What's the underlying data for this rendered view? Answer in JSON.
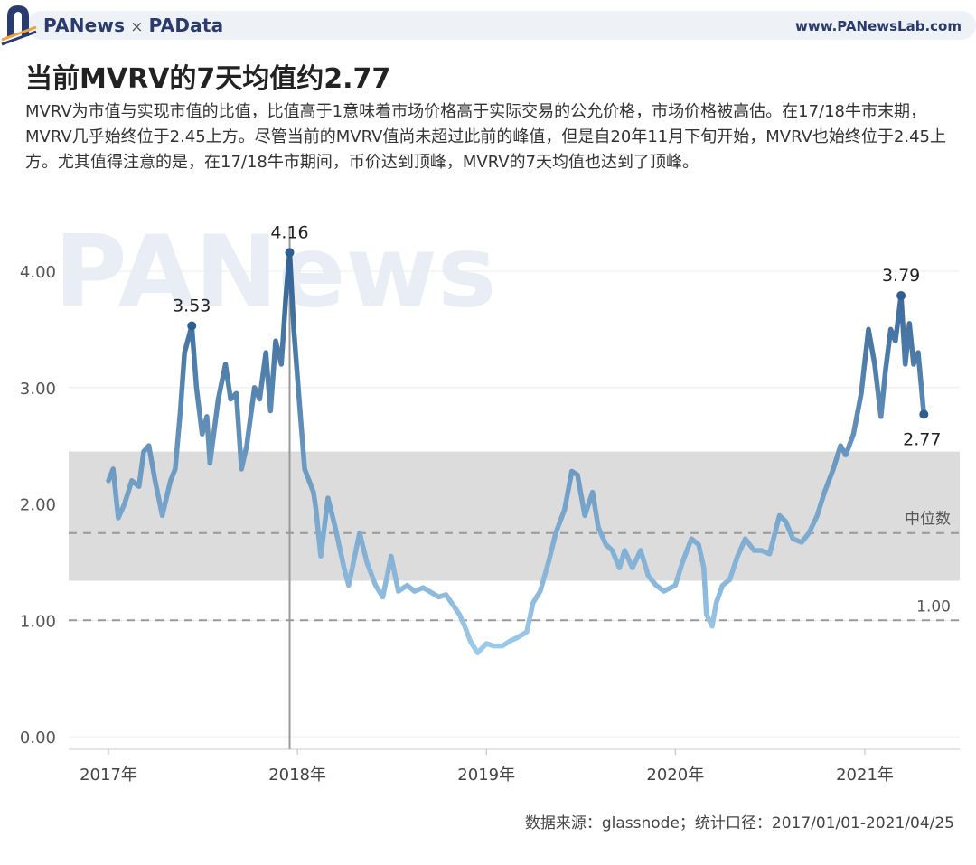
{
  "header": {
    "brand_left": "PANews",
    "brand_sep": "×",
    "brand_right": "PAData",
    "site": "www.PANewsLab.com"
  },
  "title": "当前MVRV的7天均值约2.77",
  "description": "MVRV为市值与实现市值的比值，比值高于1意味着市场价格高于实际交易的公允价格，市场价格被高估。在17/18牛市末期，MVRV几乎始终位于2.45上方。尽管当前的MVRV值尚未超过此前的峰值，但是自20年11月下旬开始，MVRV也始终位于2.45上方。尤其值得注意的是，在17/18牛市期间，币价达到顶峰，MVRV的7天均值也达到了顶峰。",
  "source": "数据来源：glassnode；统计口径：2017/01/01-2021/04/25",
  "watermarks": [
    "PANews",
    "PAData"
  ],
  "colors": {
    "line_low": "#9fcbea",
    "line_high": "#2f5f91",
    "band": "#dcdcdc"
  },
  "chart_data": {
    "type": "line",
    "title": "",
    "xlabel": "",
    "ylabel": "",
    "xlim": [
      "2017-01-01",
      "2021-05-20"
    ],
    "ylim": [
      0,
      4.3
    ],
    "y_ticks": [
      "0.00",
      "1.00",
      "2.00",
      "3.00",
      "4.00"
    ],
    "x_ticks": [
      "2017年",
      "2018年",
      "2019年",
      "2020年",
      "2021年"
    ],
    "grid": true,
    "band": [
      1.34,
      2.45
    ],
    "reference_lines": [
      {
        "label": "中位数",
        "value": 1.75
      },
      {
        "label": "1.00",
        "value": 1.0
      }
    ],
    "vertical_marker": "2017-12-17",
    "annotations": [
      {
        "label": "3.53",
        "x": "2017-06-11",
        "y": 3.53
      },
      {
        "label": "4.16",
        "x": "2017-12-17",
        "y": 4.16
      },
      {
        "label": "3.79",
        "x": "2021-03-12",
        "y": 3.79
      },
      {
        "label": "2.77",
        "x": "2021-04-25",
        "y": 2.77
      }
    ],
    "series": [
      {
        "x": [
          "2017-01-01",
          "2017-01-10",
          "2017-01-20",
          "2017-02-01",
          "2017-02-15",
          "2017-03-01",
          "2017-03-10",
          "2017-03-20",
          "2017-04-01",
          "2017-04-15",
          "2017-05-01",
          "2017-05-10",
          "2017-05-20",
          "2017-05-28",
          "2017-06-11",
          "2017-06-20",
          "2017-07-01",
          "2017-07-10",
          "2017-07-16",
          "2017-08-01",
          "2017-08-15",
          "2017-08-25",
          "2017-09-05",
          "2017-09-15",
          "2017-09-25",
          "2017-10-10",
          "2017-10-20",
          "2017-11-01",
          "2017-11-10",
          "2017-11-20",
          "2017-12-01",
          "2017-12-10",
          "2017-12-17",
          "2017-12-25",
          "2018-01-06",
          "2018-01-15",
          "2018-02-01",
          "2018-02-06",
          "2018-02-15",
          "2018-03-01",
          "2018-03-15",
          "2018-04-01",
          "2018-04-10",
          "2018-05-01",
          "2018-05-15",
          "2018-06-01",
          "2018-06-15",
          "2018-07-01",
          "2018-07-15",
          "2018-08-01",
          "2018-08-15",
          "2018-09-01",
          "2018-10-01",
          "2018-10-15",
          "2018-11-10",
          "2018-11-20",
          "2018-12-01",
          "2018-12-15",
          "2019-01-01",
          "2019-01-15",
          "2019-02-01",
          "2019-02-15",
          "2019-03-01",
          "2019-03-20",
          "2019-04-01",
          "2019-04-15",
          "2019-05-01",
          "2019-05-15",
          "2019-06-01",
          "2019-06-15",
          "2019-06-26",
          "2019-07-10",
          "2019-07-25",
          "2019-08-05",
          "2019-08-20",
          "2019-09-01",
          "2019-09-15",
          "2019-09-25",
          "2019-10-10",
          "2019-10-26",
          "2019-11-10",
          "2019-11-25",
          "2019-12-10",
          "2020-01-01",
          "2020-01-15",
          "2020-02-01",
          "2020-02-15",
          "2020-02-25",
          "2020-03-01",
          "2020-03-12",
          "2020-03-20",
          "2020-04-01",
          "2020-04-15",
          "2020-04-30",
          "2020-05-15",
          "2020-06-01",
          "2020-06-15",
          "2020-07-01",
          "2020-07-20",
          "2020-08-01",
          "2020-08-15",
          "2020-09-01",
          "2020-09-15",
          "2020-10-01",
          "2020-10-15",
          "2020-11-01",
          "2020-11-15",
          "2020-11-25",
          "2020-12-10",
          "2020-12-25",
          "2021-01-08",
          "2021-01-20",
          "2021-02-01",
          "2021-02-10",
          "2021-02-20",
          "2021-03-01",
          "2021-03-12",
          "2021-03-20",
          "2021-03-28",
          "2021-04-05",
          "2021-04-14",
          "2021-04-25"
        ],
        "y": [
          2.2,
          2.3,
          1.88,
          2.0,
          2.2,
          2.15,
          2.45,
          2.5,
          2.2,
          1.9,
          2.2,
          2.3,
          2.8,
          3.3,
          3.53,
          3.0,
          2.6,
          2.75,
          2.35,
          2.9,
          3.2,
          2.9,
          2.95,
          2.3,
          2.5,
          3.0,
          2.9,
          3.3,
          2.8,
          3.4,
          3.2,
          3.8,
          4.16,
          3.5,
          2.8,
          2.3,
          2.1,
          1.95,
          1.55,
          2.05,
          1.8,
          1.45,
          1.3,
          1.75,
          1.5,
          1.3,
          1.2,
          1.55,
          1.25,
          1.3,
          1.25,
          1.28,
          1.2,
          1.22,
          1.05,
          0.95,
          0.82,
          0.72,
          0.8,
          0.78,
          0.78,
          0.82,
          0.85,
          0.9,
          1.15,
          1.25,
          1.5,
          1.75,
          1.95,
          2.28,
          2.25,
          1.9,
          2.1,
          1.8,
          1.65,
          1.6,
          1.45,
          1.6,
          1.45,
          1.6,
          1.38,
          1.3,
          1.25,
          1.3,
          1.5,
          1.7,
          1.65,
          1.45,
          1.05,
          0.95,
          1.15,
          1.3,
          1.35,
          1.55,
          1.7,
          1.6,
          1.6,
          1.57,
          1.9,
          1.85,
          1.7,
          1.67,
          1.75,
          1.9,
          2.1,
          2.3,
          2.5,
          2.42,
          2.6,
          2.95,
          3.5,
          3.2,
          2.75,
          3.15,
          3.5,
          3.4,
          3.79,
          3.2,
          3.55,
          3.2,
          3.3,
          2.77
        ]
      }
    ]
  }
}
